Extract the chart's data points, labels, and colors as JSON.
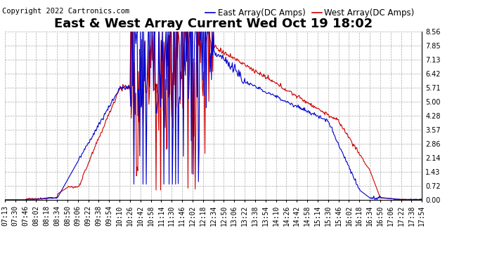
{
  "title": "East & West Array Current Wed Oct 19 18:02",
  "copyright": "Copyright 2022 Cartronics.com",
  "legend_east": "East Array(DC Amps)",
  "legend_west": "West Array(DC Amps)",
  "east_color": "#0000cc",
  "west_color": "#cc0000",
  "background_color": "#ffffff",
  "grid_color": "#aaaaaa",
  "ylim": [
    0.0,
    8.56
  ],
  "yticks": [
    0.0,
    0.72,
    1.43,
    2.14,
    2.86,
    3.57,
    4.28,
    5.0,
    5.71,
    6.42,
    7.13,
    7.85,
    8.56
  ],
  "xtick_labels": [
    "07:13",
    "07:30",
    "07:46",
    "08:02",
    "08:18",
    "08:34",
    "08:50",
    "09:06",
    "09:22",
    "09:38",
    "09:54",
    "10:10",
    "10:26",
    "10:42",
    "10:58",
    "11:14",
    "11:30",
    "11:46",
    "12:02",
    "12:18",
    "12:34",
    "12:50",
    "13:06",
    "13:22",
    "13:38",
    "13:54",
    "14:10",
    "14:26",
    "14:42",
    "14:58",
    "15:14",
    "15:30",
    "15:46",
    "16:02",
    "16:18",
    "16:34",
    "16:50",
    "17:06",
    "17:22",
    "17:38",
    "17:54"
  ],
  "title_fontsize": 13,
  "tick_fontsize": 7,
  "copyright_fontsize": 7.5,
  "legend_fontsize": 8.5,
  "linewidth": 0.8
}
